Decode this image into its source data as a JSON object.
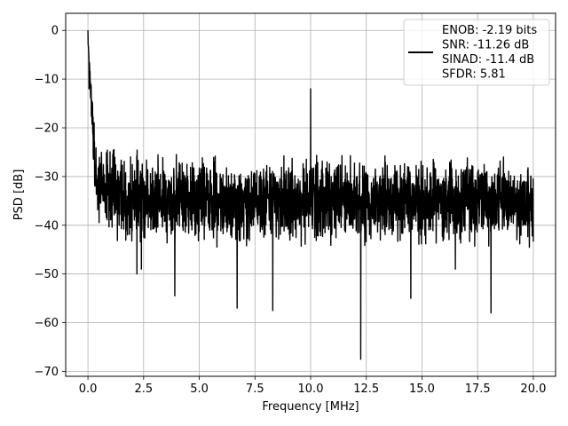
{
  "chart_data": {
    "type": "line",
    "title": "",
    "xlabel": "Frequency [MHz]",
    "ylabel": "PSD [dB]",
    "xlim": [
      -1.0,
      21.0
    ],
    "ylim": [
      -71,
      3.5
    ],
    "xticks": [
      0.0,
      2.5,
      5.0,
      7.5,
      10.0,
      12.5,
      15.0,
      17.5,
      20.0
    ],
    "xtick_labels": [
      "0.0",
      "2.5",
      "5.0",
      "7.5",
      "10.0",
      "12.5",
      "15.0",
      "17.5",
      "20.0"
    ],
    "yticks": [
      0,
      -10,
      -20,
      -30,
      -40,
      -50,
      -60,
      -70
    ],
    "ytick_labels": [
      "0",
      "−10",
      "−20",
      "−30",
      "−40",
      "−50",
      "−60",
      "−70"
    ],
    "grid": true,
    "legend_position": "top-right",
    "legend_lines": [
      "ENOB: -2.19 bits",
      "SNR: -11.26 dB",
      "SINAD: -11.4 dB",
      "SFDR: 5.81"
    ],
    "series": [
      {
        "color": "#000000",
        "noise_floor_db": -29,
        "noise_floor_range_db": [
          -47,
          -20
        ],
        "x": [
          0.0,
          0.05,
          0.1,
          0.2,
          0.3,
          0.5,
          0.8,
          1.2,
          2.0,
          2.2,
          2.4,
          3.0,
          3.9,
          4.0,
          5.0,
          6.0,
          6.7,
          7.0,
          8.0,
          8.3,
          9.0,
          10.0,
          10.05,
          11.0,
          12.0,
          12.25,
          13.0,
          14.0,
          14.5,
          15.0,
          16.0,
          16.5,
          17.0,
          18.0,
          18.1,
          19.0,
          20.0
        ],
        "y": [
          0,
          -12,
          -20,
          -25,
          -27,
          -29,
          -30,
          -30,
          -30,
          -50,
          -49,
          -31,
          -54.5,
          -31,
          -30,
          -30,
          -57,
          -30,
          -30,
          -57.5,
          -30,
          -12,
          -30,
          -30,
          -30,
          -67.5,
          -30,
          -30,
          -55,
          -30,
          -30,
          -49,
          -30,
          -30,
          -58,
          -30,
          -30
        ]
      }
    ]
  }
}
